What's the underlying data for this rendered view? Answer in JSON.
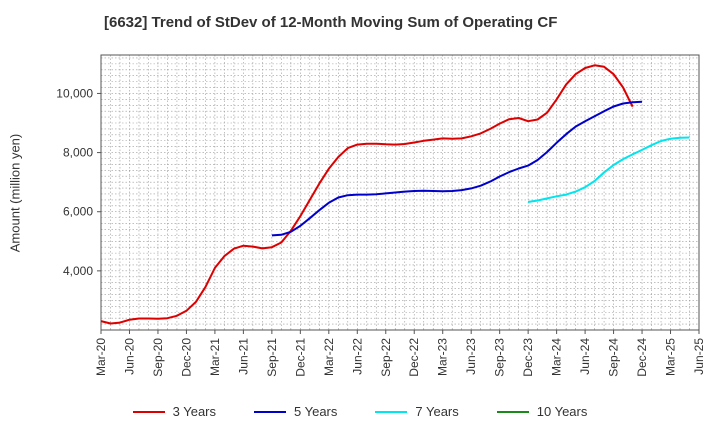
{
  "title": "[6632]  Trend of StDev of 12-Month Moving Sum of Operating CF",
  "chart_data": {
    "type": "line",
    "title": "[6632]  Trend of StDev of 12-Month Moving Sum of Operating CF",
    "xlabel": "",
    "ylabel": "Amount (million yen)",
    "x_ticks": [
      "Mar-20",
      "Jun-20",
      "Sep-20",
      "Dec-20",
      "Mar-21",
      "Jun-21",
      "Sep-21",
      "Dec-21",
      "Mar-22",
      "Jun-22",
      "Sep-22",
      "Dec-22",
      "Mar-23",
      "Jun-23",
      "Sep-23",
      "Dec-23",
      "Mar-24",
      "Jun-24",
      "Sep-24",
      "Dec-24",
      "Mar-25",
      "Jun-25"
    ],
    "y_ticks": [
      4000,
      6000,
      8000,
      10000
    ],
    "y_tick_labels": [
      "4,000",
      "6,000",
      "8,000",
      "10,000"
    ],
    "ylim": [
      2000,
      11300
    ],
    "xlim": [
      "Mar-20",
      "Jun-25"
    ],
    "grid": true,
    "legend_position": "bottom",
    "series": [
      {
        "name": "3 Years",
        "color": "#dd0000",
        "start": "Mar-20",
        "values": [
          2300,
          2220,
          2250,
          2350,
          2390,
          2390,
          2380,
          2400,
          2480,
          2650,
          2950,
          3450,
          4100,
          4500,
          4750,
          4850,
          4820,
          4760,
          4800,
          4960,
          5350,
          5850,
          6400,
          6950,
          7450,
          7850,
          8150,
          8270,
          8300,
          8300,
          8280,
          8270,
          8290,
          8340,
          8400,
          8440,
          8480,
          8470,
          8480,
          8550,
          8650,
          8800,
          8980,
          9130,
          9170,
          9060,
          9120,
          9350,
          9800,
          10300,
          10650,
          10860,
          10950,
          10900,
          10650,
          10200,
          9550
        ]
      },
      {
        "name": "5 Years",
        "color": "#0000cc",
        "start": "Sep-21",
        "values": [
          5200,
          5220,
          5320,
          5520,
          5780,
          6050,
          6300,
          6480,
          6560,
          6580,
          6580,
          6590,
          6620,
          6650,
          6680,
          6700,
          6710,
          6700,
          6690,
          6700,
          6730,
          6790,
          6880,
          7020,
          7190,
          7340,
          7460,
          7560,
          7750,
          8020,
          8330,
          8620,
          8880,
          9060,
          9230,
          9400,
          9560,
          9660,
          9700,
          9720
        ]
      },
      {
        "name": "7 Years",
        "color": "#00e5ee",
        "start": "Dec-23",
        "values": [
          6330,
          6380,
          6450,
          6520,
          6580,
          6680,
          6830,
          7040,
          7330,
          7580,
          7780,
          7940,
          8090,
          8250,
          8390,
          8470,
          8500,
          8510
        ]
      },
      {
        "name": "10 Years",
        "color": "#1a8a1a",
        "start": "Mar-25",
        "values": []
      }
    ]
  }
}
